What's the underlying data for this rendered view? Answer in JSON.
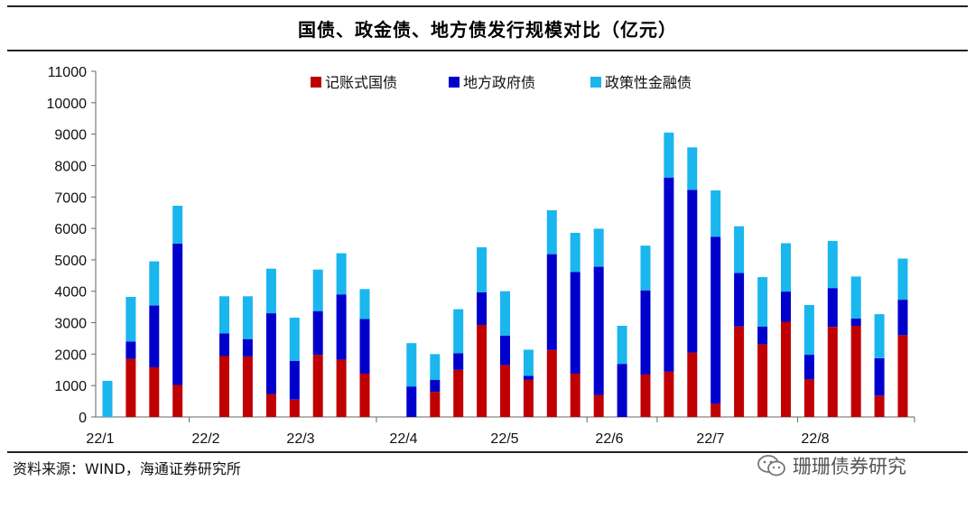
{
  "title": "国债、政金债、地方债发行规模对比（亿元）",
  "source": "资料来源：WIND，海通证券研究所",
  "watermark": {
    "text": "珊珊债券研究",
    "icon": "wechat-icon"
  },
  "colors": {
    "gov": "#c00000",
    "local": "#0000cc",
    "policy": "#1ab6ee"
  },
  "chart_data": {
    "type": "bar",
    "stacked": true,
    "title": "国债、政金债、地方债发行规模对比（亿元）",
    "xlabel": "",
    "ylabel": "",
    "ylim": [
      0,
      11000
    ],
    "yticks": [
      0,
      1000,
      2000,
      3000,
      4000,
      5000,
      6000,
      7000,
      8000,
      9000,
      10000,
      11000
    ],
    "xtick_labels": [
      "22/1",
      "22/2",
      "22/3",
      "22/4",
      "22/5",
      "22/6",
      "22/7",
      "22/8"
    ],
    "legend": [
      "记账式国债",
      "地方政府债",
      "政策性金融债"
    ],
    "legend_position": "top-center",
    "series": [
      {
        "name": "记账式国债",
        "values": [
          0,
          1850,
          1580,
          1020,
          0,
          1940,
          1930,
          730,
          550,
          1980,
          1820,
          1380,
          0,
          0,
          800,
          1500,
          2930,
          1650,
          1180,
          2130,
          1380,
          700,
          0,
          1350,
          1440,
          2050,
          420,
          2880,
          2310,
          3030,
          1200,
          2870,
          2900,
          680,
          2600
        ]
      },
      {
        "name": "地方政府债",
        "values": [
          0,
          550,
          1970,
          4500,
          0,
          720,
          550,
          2570,
          1230,
          1390,
          2080,
          1740,
          0,
          970,
          380,
          530,
          1040,
          940,
          130,
          3050,
          3230,
          4080,
          1690,
          2680,
          6180,
          5180,
          5310,
          1700,
          570,
          960,
          780,
          1230,
          230,
          1190,
          1130
        ]
      },
      {
        "name": "政策性金融债",
        "values": [
          1150,
          1420,
          1400,
          1200,
          0,
          1180,
          1360,
          1420,
          1380,
          1320,
          1310,
          950,
          0,
          1380,
          820,
          1400,
          1430,
          1410,
          830,
          1400,
          1250,
          1210,
          1210,
          1420,
          1430,
          1350,
          1480,
          1490,
          1570,
          1540,
          1580,
          1500,
          1340,
          1400,
          1310
        ]
      }
    ],
    "tick_after_bar_index": [
      4,
      12,
      21,
      24,
      30,
      35
    ]
  }
}
